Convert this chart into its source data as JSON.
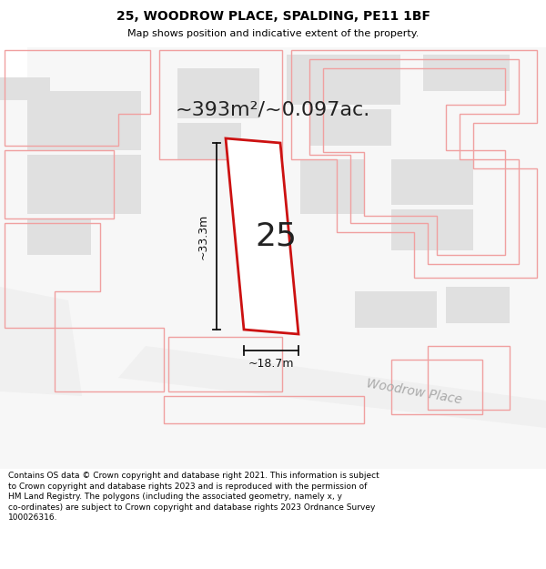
{
  "title_line1": "25, WOODROW PLACE, SPALDING, PE11 1BF",
  "title_line2": "Map shows position and indicative extent of the property.",
  "area_text": "~393m²/~0.097ac.",
  "label_25": "25",
  "dim_width": "~18.7m",
  "dim_height": "~33.3m",
  "street_label": "Woodrow Place",
  "footer_text": "Contains OS data © Crown copyright and database right 2021. This information is subject to Crown copyright and database rights 2023 and is reproduced with the permission of HM Land Registry. The polygons (including the associated geometry, namely x, y co-ordinates) are subject to Crown copyright and database rights 2023 Ordnance Survey 100026316.",
  "map_bg": "#f7f7f7",
  "building_fill": "#e0e0e0",
  "building_edge": "none",
  "plot_fill": "none",
  "plot_edge": "#f0a0a0",
  "main_fill": "#ffffff",
  "main_edge": "#cc1111",
  "arrow_color": "#111111",
  "text_dark": "#222222",
  "text_street": "#aaaaaa",
  "header_bg": "#ffffff",
  "footer_bg": "#ffffff",
  "area_fontsize": 16,
  "label_fontsize": 26,
  "dim_fontsize": 9,
  "street_fontsize": 10,
  "title_fontsize": 10,
  "subtitle_fontsize": 8
}
